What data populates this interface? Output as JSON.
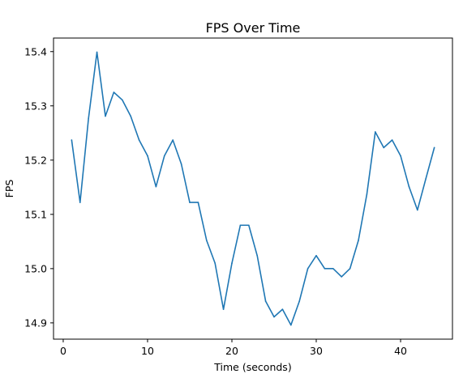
{
  "chart_data": {
    "type": "line",
    "title": "FPS Over Time",
    "xlabel": "Time (seconds)",
    "ylabel": "FPS",
    "xlim": [
      -1.15,
      46.15
    ],
    "ylim": [
      14.87,
      15.425
    ],
    "xticks": [
      0,
      10,
      20,
      30,
      40
    ],
    "yticks": [
      14.9,
      15.0,
      15.1,
      15.2,
      15.3,
      15.4
    ],
    "xtick_labels": [
      "0",
      "10",
      "20",
      "30",
      "40"
    ],
    "ytick_labels": [
      "14.9",
      "15.0",
      "15.1",
      "15.2",
      "15.3",
      "15.4"
    ],
    "grid": false,
    "line_color": "#1f77b4",
    "x": [
      1,
      2,
      3,
      4,
      5,
      6,
      7,
      8,
      9,
      10,
      11,
      12,
      13,
      14,
      15,
      16,
      17,
      18,
      19,
      20,
      21,
      22,
      23,
      24,
      25,
      26,
      27,
      28,
      29,
      30,
      31,
      32,
      33,
      34,
      35,
      36,
      37,
      38,
      39,
      40,
      41,
      42,
      43,
      44
    ],
    "y": [
      15.237,
      15.122,
      15.277,
      15.399,
      15.281,
      15.325,
      15.311,
      15.281,
      15.237,
      15.208,
      15.151,
      15.208,
      15.237,
      15.193,
      15.122,
      15.122,
      15.052,
      15.01,
      14.925,
      15.01,
      15.08,
      15.08,
      15.024,
      14.94,
      14.911,
      14.925,
      14.896,
      14.94,
      15.0,
      15.024,
      15.0,
      15.0,
      14.985,
      15.0,
      15.052,
      15.137,
      15.252,
      15.223,
      15.237,
      15.208,
      15.151,
      15.108,
      15.166,
      15.223
    ]
  }
}
